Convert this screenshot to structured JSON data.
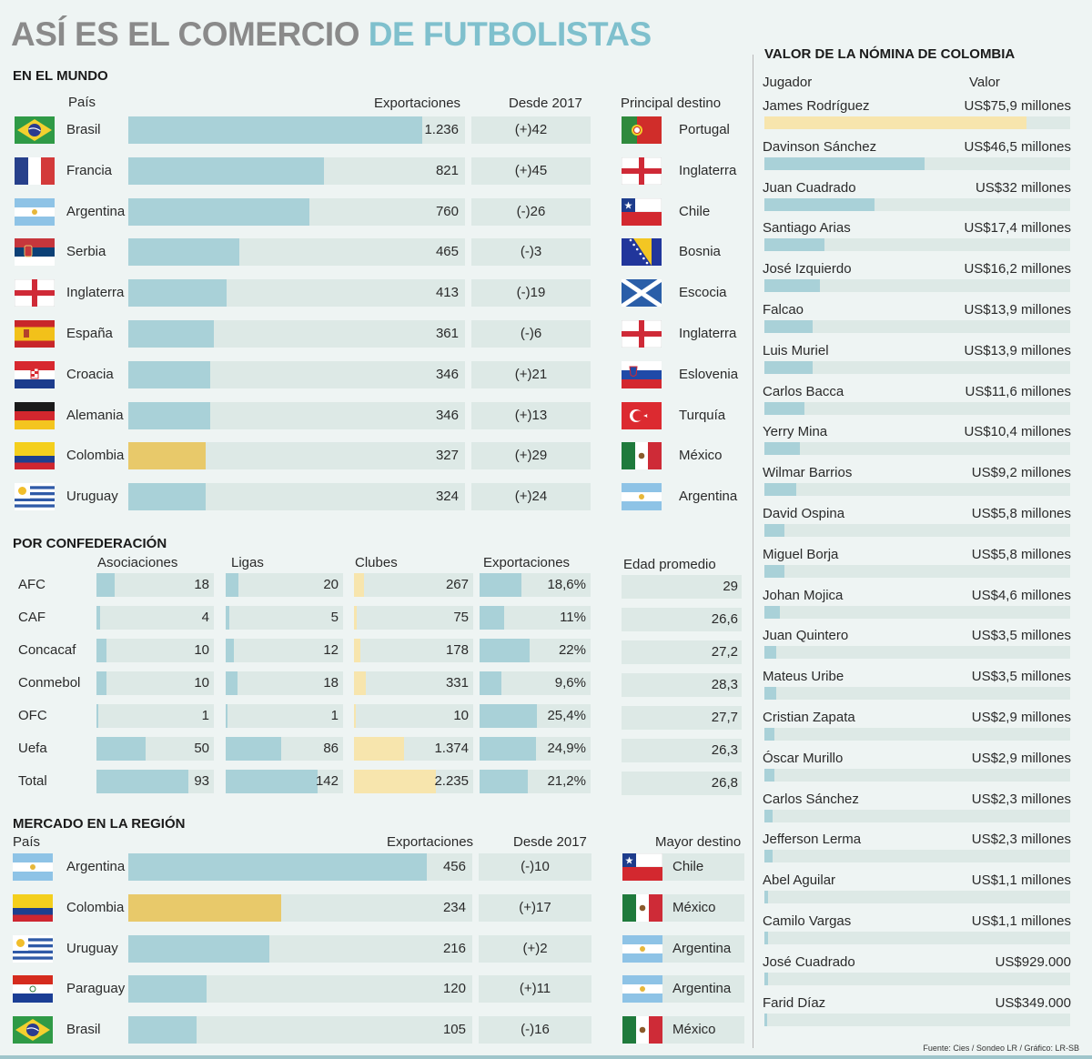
{
  "title": {
    "part1": "ASÍ ES EL COMERCIO",
    "part2": "DE FUTBOLISTAS"
  },
  "mundo": {
    "section": "EN EL MUNDO",
    "headers": {
      "pais": "País",
      "exportaciones": "Exportaciones",
      "desde": "Desde 2017",
      "destino": "Principal destino"
    },
    "rows": [
      {
        "flag": "brazil",
        "pais": "Brasil",
        "exportaciones": "1.236",
        "value": 1236,
        "desde": "(+)42",
        "destino": "Portugal",
        "dflag": "portugal",
        "highlight": false
      },
      {
        "flag": "france",
        "pais": "Francia",
        "exportaciones": "821",
        "value": 821,
        "desde": "(+)45",
        "destino": "Inglaterra",
        "dflag": "england",
        "highlight": false
      },
      {
        "flag": "argentina",
        "pais": "Argentina",
        "exportaciones": "760",
        "value": 760,
        "desde": "(-)26",
        "destino": "Chile",
        "dflag": "chile",
        "highlight": false
      },
      {
        "flag": "serbia",
        "pais": "Serbia",
        "exportaciones": "465",
        "value": 465,
        "desde": "(-)3",
        "destino": "Bosnia",
        "dflag": "bosnia",
        "highlight": false
      },
      {
        "flag": "england",
        "pais": "Inglaterra",
        "exportaciones": "413",
        "value": 413,
        "desde": "(-)19",
        "destino": "Escocia",
        "dflag": "scotland",
        "highlight": false
      },
      {
        "flag": "spain",
        "pais": "España",
        "exportaciones": "361",
        "value": 361,
        "desde": "(-)6",
        "destino": "Inglaterra",
        "dflag": "england",
        "highlight": false
      },
      {
        "flag": "croatia",
        "pais": "Croacia",
        "exportaciones": "346",
        "value": 346,
        "desde": "(+)21",
        "destino": "Eslovenia",
        "dflag": "slovenia",
        "highlight": false
      },
      {
        "flag": "germany",
        "pais": "Alemania",
        "exportaciones": "346",
        "value": 346,
        "desde": "(+)13",
        "destino": "Turquía",
        "dflag": "turkey",
        "highlight": false
      },
      {
        "flag": "colombia",
        "pais": "Colombia",
        "exportaciones": "327",
        "value": 327,
        "desde": "(+)29",
        "destino": "México",
        "dflag": "mexico",
        "highlight": true
      },
      {
        "flag": "uruguay",
        "pais": "Uruguay",
        "exportaciones": "324",
        "value": 324,
        "desde": "(+)24",
        "destino": "Argentina",
        "dflag": "argentina",
        "highlight": false
      }
    ]
  },
  "confed": {
    "section": "POR CONFEDERACIÓN",
    "headers": {
      "asociaciones": "Asociaciones",
      "ligas": "Ligas",
      "clubes": "Clubes",
      "exportaciones": "Exportaciones",
      "edad": "Edad promedio"
    },
    "rows": [
      {
        "name": "AFC",
        "asoc": 18,
        "ligas": 20,
        "clubes": "267",
        "clubes_v": 267,
        "exp": "18,6%",
        "exp_v": 18.6,
        "edad": "29"
      },
      {
        "name": "CAF",
        "asoc": 4,
        "ligas": 5,
        "clubes": "75",
        "clubes_v": 75,
        "exp": "11%",
        "exp_v": 11,
        "edad": "26,6"
      },
      {
        "name": "Concacaf",
        "asoc": 10,
        "ligas": 12,
        "clubes": "178",
        "clubes_v": 178,
        "exp": "22%",
        "exp_v": 22,
        "edad": "27,2"
      },
      {
        "name": "Conmebol",
        "asoc": 10,
        "ligas": 18,
        "clubes": "331",
        "clubes_v": 331,
        "exp": "9,6%",
        "exp_v": 9.6,
        "edad": "28,3"
      },
      {
        "name": "OFC",
        "asoc": 1,
        "ligas": 1,
        "clubes": "10",
        "clubes_v": 10,
        "exp": "25,4%",
        "exp_v": 25.4,
        "edad": "27,7"
      },
      {
        "name": "Uefa",
        "asoc": 50,
        "ligas": 86,
        "clubes": "1.374",
        "clubes_v": 1374,
        "exp": "24,9%",
        "exp_v": 24.9,
        "edad": "26,3"
      },
      {
        "name": "Total",
        "asoc": 93,
        "ligas": 142,
        "clubes": "2.235",
        "clubes_v": 2235,
        "exp": "21,2%",
        "exp_v": 21.2,
        "edad": "26,8"
      }
    ]
  },
  "region": {
    "section": "MERCADO EN LA REGIÓN",
    "headers": {
      "pais": "País",
      "exportaciones": "Exportaciones",
      "desde": "Desde 2017",
      "destino": "Mayor destino"
    },
    "rows": [
      {
        "flag": "argentina",
        "pais": "Argentina",
        "exportaciones": "456",
        "value": 456,
        "desde": "(-)10",
        "destino": "Chile",
        "dflag": "chile",
        "highlight": false
      },
      {
        "flag": "colombia",
        "pais": "Colombia",
        "exportaciones": "234",
        "value": 234,
        "desde": "(+)17",
        "destino": "México",
        "dflag": "mexico",
        "highlight": true
      },
      {
        "flag": "uruguay",
        "pais": "Uruguay",
        "exportaciones": "216",
        "value": 216,
        "desde": "(+)2",
        "destino": "Argentina",
        "dflag": "argentina",
        "highlight": false
      },
      {
        "flag": "paraguay",
        "pais": "Paraguay",
        "exportaciones": "120",
        "value": 120,
        "desde": "(+)11",
        "destino": "Argentina",
        "dflag": "argentina",
        "highlight": false
      },
      {
        "flag": "brazil",
        "pais": "Brasil",
        "exportaciones": "105",
        "value": 105,
        "desde": "(-)16",
        "destino": "México",
        "dflag": "mexico",
        "highlight": false
      }
    ]
  },
  "nomina": {
    "section": "VALOR DE LA  NÓMINA DE COLOMBIA",
    "headers": {
      "jugador": "Jugador",
      "valor": "Valor"
    },
    "rows": [
      {
        "name": "James Rodríguez",
        "valor": "US$75,9 millones",
        "value": 75.9,
        "highlight": true
      },
      {
        "name": "Davinson Sánchez",
        "valor": "US$46,5 millones",
        "value": 46.5
      },
      {
        "name": "Juan Cuadrado",
        "valor": "US$32 millones",
        "value": 32
      },
      {
        "name": "Santiago Arias",
        "valor": "US$17,4 millones",
        "value": 17.4
      },
      {
        "name": "José Izquierdo",
        "valor": "US$16,2 millones",
        "value": 16.2
      },
      {
        "name": "Falcao",
        "valor": "US$13,9 millones",
        "value": 13.9
      },
      {
        "name": "Luis Muriel",
        "valor": "US$13,9 millones",
        "value": 13.9
      },
      {
        "name": "Carlos Bacca",
        "valor": "US$11,6 millones",
        "value": 11.6
      },
      {
        "name": "Yerry Mina",
        "valor": "US$10,4 millones",
        "value": 10.4
      },
      {
        "name": "Wilmar Barrios",
        "valor": "US$9,2 millones",
        "value": 9.2
      },
      {
        "name": "David Ospina",
        "valor": "US$5,8 millones",
        "value": 5.8
      },
      {
        "name": "Miguel Borja",
        "valor": "US$5,8 millones",
        "value": 5.8
      },
      {
        "name": "Johan Mojica",
        "valor": "US$4,6 millones",
        "value": 4.6
      },
      {
        "name": "Juan Quintero",
        "valor": "US$3,5 millones",
        "value": 3.5
      },
      {
        "name": "Mateus Uribe",
        "valor": "US$3,5 millones",
        "value": 3.5
      },
      {
        "name": "Cristian Zapata",
        "valor": "US$2,9 millones",
        "value": 2.9
      },
      {
        "name": "Óscar Murillo",
        "valor": "US$2,9 millones",
        "value": 2.9
      },
      {
        "name": "Carlos Sánchez",
        "valor": "US$2,3 millones",
        "value": 2.3
      },
      {
        "name": "Jefferson Lerma",
        "valor": "US$2,3 millones",
        "value": 2.3
      },
      {
        "name": "Abel Aguilar",
        "valor": "US$1,1 millones",
        "value": 1.1
      },
      {
        "name": "Camilo Vargas",
        "valor": "US$1,1 millones",
        "value": 1.1
      },
      {
        "name": "José Cuadrado",
        "valor": "US$929.000",
        "value": 0.929
      },
      {
        "name": "Farid Díaz",
        "valor": "US$349.000",
        "value": 0.349
      }
    ]
  },
  "source": "Fuente: Cies / Sondeo LR / Gráfico: LR-SB",
  "colors": {
    "bar": "#a9d1d8",
    "highlight": "#e8c96a",
    "pale_highlight": "#f7e5ad",
    "track": "#dde9e6",
    "title_gray": "#8a8a8a",
    "title_blue": "#7fc0cd"
  },
  "chart_data": [
    {
      "type": "bar",
      "title": "EN EL MUNDO",
      "categories": [
        "Brasil",
        "Francia",
        "Argentina",
        "Serbia",
        "Inglaterra",
        "España",
        "Croacia",
        "Alemania",
        "Colombia",
        "Uruguay"
      ],
      "values": [
        1236,
        821,
        760,
        465,
        413,
        361,
        346,
        346,
        327,
        324
      ],
      "xlabel": "",
      "ylabel": "Exportaciones",
      "ylim": [
        0,
        1236
      ]
    },
    {
      "type": "bar",
      "title": "POR CONFEDERACIÓN",
      "categories": [
        "AFC",
        "CAF",
        "Concacaf",
        "Conmebol",
        "OFC",
        "Uefa",
        "Total"
      ],
      "series": [
        {
          "name": "Asociaciones",
          "values": [
            18,
            4,
            10,
            10,
            1,
            50,
            93
          ]
        },
        {
          "name": "Ligas",
          "values": [
            20,
            5,
            12,
            18,
            1,
            86,
            142
          ]
        },
        {
          "name": "Clubes",
          "values": [
            267,
            75,
            178,
            331,
            10,
            1374,
            2235
          ]
        },
        {
          "name": "Exportaciones",
          "values": [
            18.6,
            11,
            22,
            9.6,
            25.4,
            24.9,
            21.2
          ]
        },
        {
          "name": "Edad promedio",
          "values": [
            29,
            26.6,
            27.2,
            28.3,
            27.7,
            26.3,
            26.8
          ]
        }
      ]
    },
    {
      "type": "bar",
      "title": "MERCADO EN LA REGIÓN",
      "categories": [
        "Argentina",
        "Colombia",
        "Uruguay",
        "Paraguay",
        "Brasil"
      ],
      "values": [
        456,
        234,
        216,
        120,
        105
      ],
      "ylabel": "Exportaciones",
      "ylim": [
        0,
        600
      ]
    },
    {
      "type": "bar",
      "title": "VALOR DE LA NÓMINA DE COLOMBIA",
      "categories": [
        "James Rodríguez",
        "Davinson Sánchez",
        "Juan Cuadrado",
        "Santiago Arias",
        "José Izquierdo",
        "Falcao",
        "Luis Muriel",
        "Carlos Bacca",
        "Yerry Mina",
        "Wilmar Barrios",
        "David Ospina",
        "Miguel Borja",
        "Johan Mojica",
        "Juan Quintero",
        "Mateus Uribe",
        "Cristian Zapata",
        "Óscar Murillo",
        "Carlos Sánchez",
        "Jefferson Lerma",
        "Abel Aguilar",
        "Camilo Vargas",
        "José Cuadrado",
        "Farid Díaz"
      ],
      "values": [
        75.9,
        46.5,
        32,
        17.4,
        16.2,
        13.9,
        13.9,
        11.6,
        10.4,
        9.2,
        5.8,
        5.8,
        4.6,
        3.5,
        3.5,
        2.9,
        2.9,
        2.3,
        2.3,
        1.1,
        1.1,
        0.929,
        0.349
      ],
      "ylabel": "Valor (US$ millones)"
    }
  ]
}
